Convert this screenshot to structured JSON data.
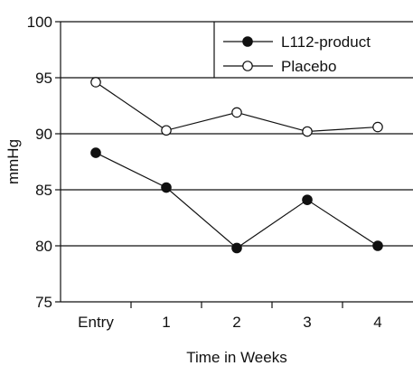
{
  "chart_data": {
    "type": "line",
    "categories": [
      "Entry",
      "1",
      "2",
      "3",
      "4"
    ],
    "series": [
      {
        "name": "L112-product",
        "values": [
          88.3,
          85.2,
          79.8,
          84.1,
          80.0
        ],
        "marker": "filled-circle",
        "color": "#111111"
      },
      {
        "name": "Placebo",
        "values": [
          94.6,
          90.3,
          91.9,
          90.2,
          90.6
        ],
        "marker": "open-circle",
        "color": "#111111"
      }
    ],
    "xlabel": "Time in Weeks",
    "ylabel": "mmHg",
    "ylim": [
      75,
      100
    ],
    "yticks": [
      75,
      80,
      85,
      90,
      95,
      100
    ],
    "grid": "horizontal",
    "legend": "top-right"
  }
}
